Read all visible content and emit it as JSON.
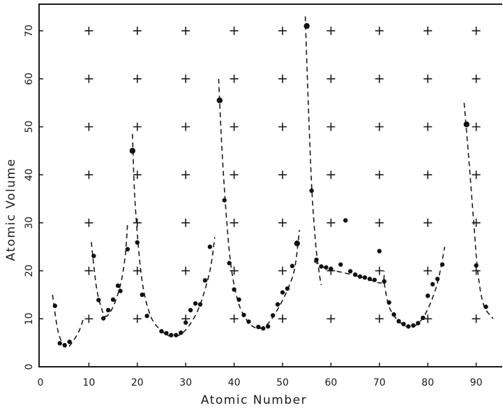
{
  "chart_data": {
    "type": "scatter",
    "xlabel": "Atomic Number",
    "ylabel": "Atomic Volume",
    "xlim": [
      0,
      94
    ],
    "ylim": [
      0,
      75
    ],
    "xticks": [
      "0",
      "10",
      "20",
      "30",
      "40",
      "50",
      "60",
      "70",
      "80",
      "90"
    ],
    "yticks": [
      "0",
      "10",
      "20",
      "30",
      "40",
      "50",
      "60",
      "70"
    ],
    "grid": "plus-markers",
    "points": [
      [
        3,
        12.7
      ],
      [
        4,
        4.9
      ],
      [
        5,
        4.5
      ],
      [
        6,
        5.2
      ],
      [
        11,
        23.1
      ],
      [
        12,
        13.9
      ],
      [
        13,
        10.1
      ],
      [
        14,
        11.8
      ],
      [
        15,
        14
      ],
      [
        16,
        16.9
      ],
      [
        16.5,
        15.8
      ],
      [
        18,
        24.5
      ],
      [
        19,
        45.0
      ],
      [
        20,
        25.9
      ],
      [
        21,
        15.0
      ],
      [
        22,
        10.6
      ],
      [
        25,
        7.4
      ],
      [
        26,
        7.0
      ],
      [
        27,
        6.6
      ],
      [
        28,
        6.6
      ],
      [
        29,
        7.1
      ],
      [
        30,
        9.2
      ],
      [
        31,
        11.8
      ],
      [
        32,
        13.2
      ],
      [
        33,
        13.0
      ],
      [
        34,
        18.0
      ],
      [
        35,
        25.0
      ],
      [
        37,
        55.5
      ],
      [
        38,
        34.7
      ],
      [
        39,
        21.6
      ],
      [
        40,
        16.1
      ],
      [
        41,
        14.0
      ],
      [
        42,
        10.8
      ],
      [
        43,
        9.4
      ],
      [
        45,
        8.3
      ],
      [
        46,
        8.0
      ],
      [
        47,
        8.4
      ],
      [
        48,
        10.7
      ],
      [
        49,
        13.0
      ],
      [
        50,
        15.5
      ],
      [
        51,
        16.3
      ],
      [
        52,
        21.0
      ],
      [
        53,
        25.7
      ],
      [
        55,
        71.0
      ],
      [
        56,
        36.7
      ],
      [
        57,
        22.3
      ],
      [
        58,
        20.9
      ],
      [
        59,
        20.7
      ],
      [
        60,
        20.4
      ],
      [
        62,
        21.3
      ],
      [
        63,
        30.5
      ],
      [
        64,
        19.9
      ],
      [
        65,
        19.2
      ],
      [
        66,
        18.8
      ],
      [
        67,
        18.6
      ],
      [
        68,
        18.3
      ],
      [
        69,
        18.1
      ],
      [
        70,
        24.1
      ],
      [
        71,
        17.8
      ],
      [
        72,
        13.4
      ],
      [
        73,
        10.9
      ],
      [
        74,
        9.5
      ],
      [
        75,
        8.9
      ],
      [
        76,
        8.4
      ],
      [
        77,
        8.6
      ],
      [
        78,
        9.1
      ],
      [
        79,
        10.2
      ],
      [
        80,
        14.8
      ],
      [
        81,
        17.2
      ],
      [
        82,
        18.3
      ],
      [
        83,
        21.3
      ],
      [
        88,
        50.5
      ],
      [
        90,
        21.1
      ],
      [
        92,
        12.5
      ]
    ],
    "large_points": [
      [
        19,
        45.0
      ],
      [
        37,
        55.5
      ],
      [
        53,
        25.7
      ],
      [
        55,
        71.0
      ],
      [
        88,
        50.5
      ]
    ],
    "curves": [
      [
        [
          2.5,
          15
        ],
        [
          3.5,
          8
        ],
        [
          4.5,
          5
        ],
        [
          5.5,
          4
        ],
        [
          6.5,
          5
        ],
        [
          8,
          7.5
        ],
        [
          9,
          10.5
        ]
      ],
      [
        [
          10.5,
          26
        ],
        [
          11.5,
          17
        ],
        [
          12.5,
          12.5
        ],
        [
          13.5,
          10.5
        ],
        [
          15,
          12.5
        ],
        [
          16.5,
          17
        ],
        [
          17.5,
          23
        ],
        [
          18,
          30
        ]
      ],
      [
        [
          19,
          48.5
        ],
        [
          19.5,
          35
        ],
        [
          20.5,
          22
        ],
        [
          21.5,
          15
        ],
        [
          23,
          10
        ],
        [
          25,
          7.5
        ],
        [
          27,
          6.3
        ],
        [
          29,
          6.8
        ],
        [
          31,
          9
        ],
        [
          33,
          13
        ],
        [
          35,
          20
        ],
        [
          36,
          27
        ]
      ],
      [
        [
          36.8,
          60
        ],
        [
          37.5,
          45
        ],
        [
          38.5,
          30
        ],
        [
          39.5,
          20
        ],
        [
          41,
          13
        ],
        [
          43,
          9.2
        ],
        [
          45,
          8
        ],
        [
          47,
          9
        ],
        [
          49,
          12
        ],
        [
          51,
          16
        ],
        [
          52.5,
          20.5
        ],
        [
          53.5,
          28.5
        ]
      ],
      [
        [
          54.7,
          73
        ],
        [
          55.2,
          58
        ],
        [
          56,
          38
        ],
        [
          56.8,
          26
        ],
        [
          57.5,
          20
        ],
        [
          58,
          17
        ]
      ],
      [
        [
          56.5,
          22
        ],
        [
          59,
          20.5
        ],
        [
          63,
          19.5
        ],
        [
          67,
          18.5
        ],
        [
          70.5,
          17.5
        ],
        [
          71,
          20
        ]
      ],
      [
        [
          71,
          17.5
        ],
        [
          72,
          12.5
        ],
        [
          74,
          9.5
        ],
        [
          76,
          8.3
        ],
        [
          78,
          9
        ],
        [
          80,
          12
        ],
        [
          82,
          17.5
        ],
        [
          83.5,
          25
        ]
      ],
      [
        [
          87.5,
          55
        ],
        [
          88.5,
          43
        ],
        [
          89.5,
          30
        ],
        [
          90.3,
          20
        ],
        [
          91.5,
          13
        ],
        [
          93.5,
          10
        ]
      ]
    ]
  }
}
